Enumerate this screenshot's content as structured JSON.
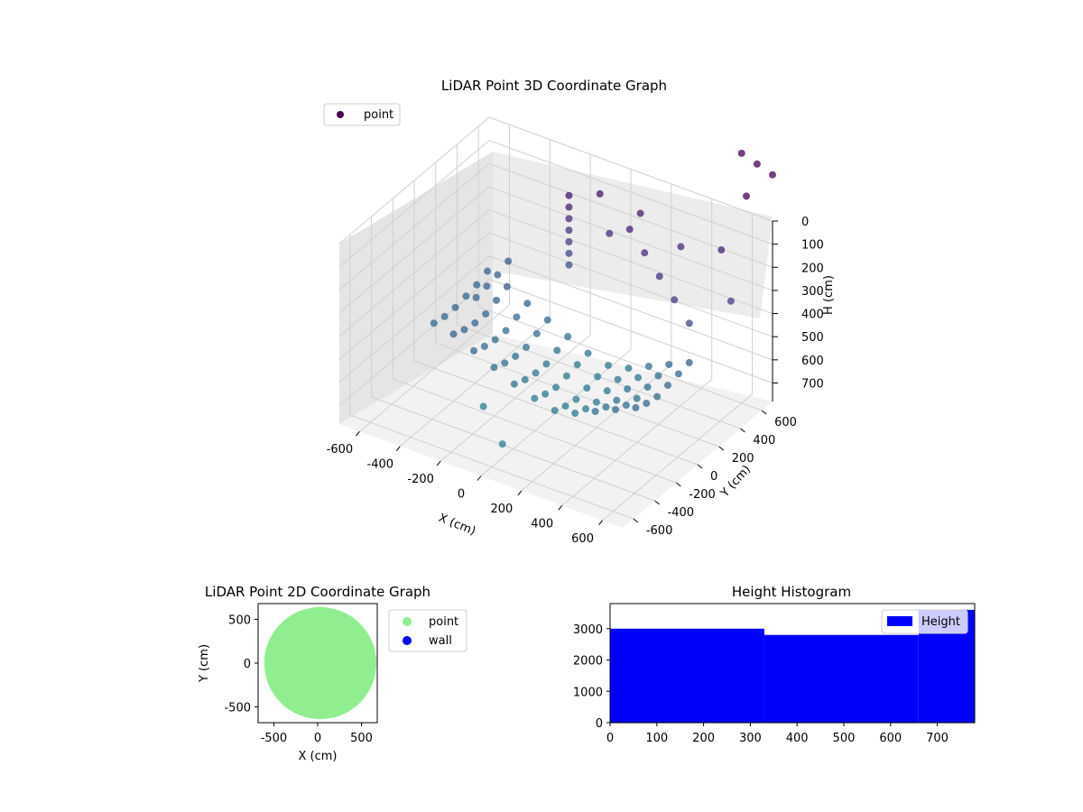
{
  "chart_data": [
    {
      "type": "scatter3d",
      "title": "LiDAR Point 3D Coordinate Graph",
      "xlabel": "X (cm)",
      "ylabel": "Y (cm)",
      "zlabel": "H (cm)",
      "x_ticks": [
        -600,
        -400,
        -200,
        0,
        200,
        400,
        600
      ],
      "y_ticks": [
        -600,
        -400,
        -200,
        0,
        200,
        400,
        600
      ],
      "z_ticks": [
        0,
        100,
        200,
        300,
        400,
        500,
        600,
        700
      ],
      "xlim": [
        -700,
        700
      ],
      "ylim": [
        -700,
        700
      ],
      "zlim": [
        780,
        0
      ],
      "z_inverted": true,
      "legend": [
        "point"
      ],
      "legend_position": "top-left",
      "colormap": "viridis",
      "grid": true,
      "series": [
        {
          "name": "point",
          "color": "#440154",
          "points": [
            [
              -400,
              300,
              480
            ],
            [
              -300,
              300,
              520
            ],
            [
              -200,
              300,
              560
            ],
            [
              -100,
              300,
              600
            ],
            [
              0,
              300,
              640
            ],
            [
              100,
              300,
              660
            ],
            [
              200,
              300,
              640
            ],
            [
              300,
              300,
              600
            ],
            [
              400,
              300,
              560
            ],
            [
              500,
              300,
              520
            ],
            [
              -400,
              200,
              500
            ],
            [
              -300,
              200,
              540
            ],
            [
              -200,
              200,
              580
            ],
            [
              -100,
              200,
              620
            ],
            [
              0,
              200,
              650
            ],
            [
              100,
              200,
              670
            ],
            [
              200,
              200,
              650
            ],
            [
              300,
              200,
              610
            ],
            [
              400,
              200,
              570
            ],
            [
              500,
              200,
              530
            ],
            [
              -400,
              100,
              520
            ],
            [
              -300,
              100,
              560
            ],
            [
              -200,
              100,
              600
            ],
            [
              -100,
              100,
              640
            ],
            [
              0,
              100,
              660
            ],
            [
              100,
              100,
              680
            ],
            [
              200,
              100,
              660
            ],
            [
              300,
              100,
              620
            ],
            [
              400,
              100,
              580
            ],
            [
              500,
              100,
              540
            ],
            [
              -400,
              0,
              520
            ],
            [
              -300,
              0,
              560
            ],
            [
              -200,
              0,
              600
            ],
            [
              -100,
              0,
              640
            ],
            [
              0,
              0,
              670
            ],
            [
              100,
              0,
              690
            ],
            [
              200,
              0,
              670
            ],
            [
              300,
              0,
              630
            ],
            [
              400,
              0,
              590
            ],
            [
              500,
              0,
              550
            ],
            [
              -400,
              -100,
              510
            ],
            [
              -300,
              -100,
              550
            ],
            [
              -200,
              -100,
              590
            ],
            [
              -100,
              -100,
              630
            ],
            [
              0,
              -100,
              660
            ],
            [
              100,
              -100,
              680
            ],
            [
              200,
              -100,
              660
            ],
            [
              300,
              -100,
              620
            ],
            [
              400,
              -100,
              580
            ],
            [
              500,
              -100,
              540
            ],
            [
              -400,
              -200,
              490
            ],
            [
              -300,
              -200,
              530
            ],
            [
              -200,
              -200,
              570
            ],
            [
              -100,
              -200,
              610
            ],
            [
              0,
              -200,
              640
            ],
            [
              100,
              -200,
              660
            ],
            [
              200,
              -200,
              640
            ],
            [
              300,
              -200,
              600
            ],
            [
              400,
              -200,
              560
            ],
            [
              500,
              -200,
              520
            ],
            [
              -550,
              400,
              500
            ],
            [
              -550,
              300,
              520
            ],
            [
              -550,
              200,
              530
            ],
            [
              -550,
              100,
              540
            ],
            [
              -550,
              0,
              540
            ],
            [
              -550,
              -100,
              530
            ],
            [
              -500,
              500,
              480
            ],
            [
              -500,
              400,
              500
            ],
            [
              -500,
              300,
              510
            ],
            [
              -500,
              200,
              520
            ],
            [
              -200,
              500,
              100
            ],
            [
              -200,
              500,
              150
            ],
            [
              -200,
              500,
              200
            ],
            [
              -200,
              500,
              250
            ],
            [
              -200,
              500,
              300
            ],
            [
              -200,
              500,
              350
            ],
            [
              -200,
              500,
              400
            ],
            [
              0,
              500,
              200
            ],
            [
              100,
              500,
              150
            ],
            [
              200,
              450,
              200
            ],
            [
              300,
              400,
              250
            ],
            [
              400,
              350,
              300
            ],
            [
              500,
              300,
              350
            ],
            [
              -100,
              600,
              100
            ],
            [
              100,
              600,
              120
            ],
            [
              300,
              600,
              200
            ],
            [
              500,
              600,
              150
            ],
            [
              600,
              500,
              300
            ],
            [
              600,
              600,
              -300
            ],
            [
              650,
              650,
              -250
            ],
            [
              700,
              700,
              -200
            ],
            [
              650,
              550,
              -150
            ],
            [
              -200,
              -300,
              700
            ],
            [
              0,
              -500,
              720
            ]
          ]
        }
      ]
    },
    {
      "type": "scatter",
      "title": "LiDAR Point 2D Coordinate Graph",
      "xlabel": "X (cm)",
      "ylabel": "Y (cm)",
      "x_ticks": [
        -500,
        0,
        500
      ],
      "y_ticks": [
        -500,
        0,
        500
      ],
      "xlim": [
        -680,
        680
      ],
      "ylim": [
        -680,
        680
      ],
      "legend": [
        "point",
        "wall"
      ],
      "legend_position": "outside-right",
      "series": [
        {
          "name": "point",
          "color": "#90ee90",
          "region": "disc",
          "cx": 30,
          "cy": 0,
          "r": 640
        },
        {
          "name": "wall",
          "color": "#0000ff",
          "values": []
        }
      ]
    },
    {
      "type": "bar",
      "title": "Height Histogram",
      "xlabel": "",
      "ylabel": "",
      "x_ticks": [
        0,
        100,
        200,
        300,
        400,
        500,
        600,
        700
      ],
      "y_ticks": [
        0,
        1000,
        2000,
        3000
      ],
      "xlim": [
        0,
        780
      ],
      "ylim": [
        0,
        3800
      ],
      "legend": [
        "Height"
      ],
      "legend_position": "top-right",
      "series": [
        {
          "name": "Height",
          "color": "#0000ff",
          "bins": [
            [
              0,
              330,
              3000
            ],
            [
              330,
              660,
              2800
            ],
            [
              660,
              780,
              3600
            ]
          ]
        }
      ]
    }
  ]
}
